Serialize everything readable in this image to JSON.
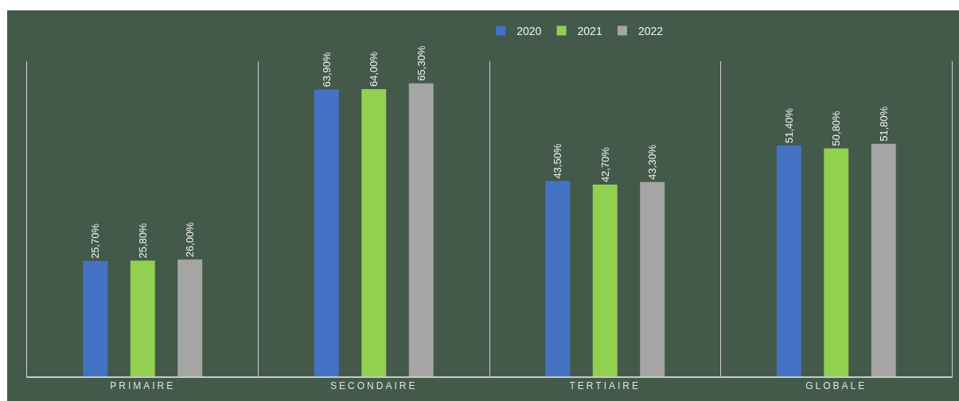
{
  "chart_data": {
    "type": "bar",
    "categories": [
      "PRIMAIRE",
      "SECONDAIRE",
      "TERTIAIRE",
      "GLOBALE"
    ],
    "series": [
      {
        "name": "2020",
        "color": "#4472c4",
        "values": [
          25.7,
          63.9,
          43.5,
          51.4
        ],
        "value_labels": [
          "25,70%",
          "63,90%",
          "43,50%",
          "51,40%"
        ]
      },
      {
        "name": "2021",
        "color": "#92d050",
        "values": [
          25.8,
          64.0,
          42.7,
          50.8
        ],
        "value_labels": [
          "25,80%",
          "64,00%",
          "42,70%",
          "50,80%"
        ]
      },
      {
        "name": "2022",
        "color": "#a5a5a5",
        "values": [
          26.0,
          65.3,
          43.3,
          51.8
        ],
        "value_labels": [
          "26,00%",
          "65,30%",
          "43,30%",
          "51,80%"
        ]
      }
    ],
    "legend": "top",
    "grid": "x",
    "tick_labels": "x"
  }
}
